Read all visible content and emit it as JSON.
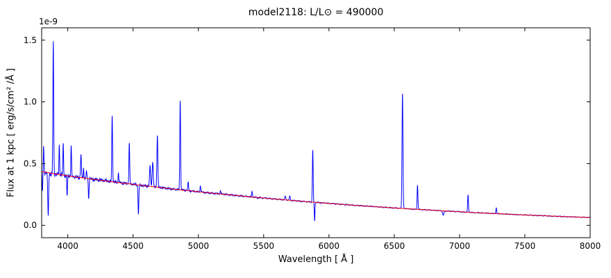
{
  "chart_data": {
    "type": "line",
    "title": "model2118: L/L⊙ = 490000",
    "offset_label": "1e-9",
    "xlabel": "Wavelength [ Å ]",
    "ylabel": "Flux at 1 kpc [ erg/s/cm² /Å ]",
    "xlim": [
      3800,
      8000
    ],
    "ylim": [
      -0.1,
      1.6
    ],
    "xticks": [
      4000,
      4500,
      5000,
      5500,
      6000,
      6500,
      7000,
      7500,
      8000
    ],
    "yticks": [
      0.0,
      0.5,
      1.0,
      1.5
    ],
    "grid": false,
    "legend": null,
    "series": [
      {
        "name": "observed-spectrum",
        "color": "#0000ff"
      },
      {
        "name": "continuum-fit",
        "color": "#ff0000"
      }
    ],
    "continuum_points": [
      [
        3800,
        0.435
      ],
      [
        3900,
        0.417
      ],
      [
        4000,
        0.4
      ],
      [
        4100,
        0.386
      ],
      [
        4200,
        0.372
      ],
      [
        4300,
        0.358
      ],
      [
        4400,
        0.345
      ],
      [
        4500,
        0.332
      ],
      [
        4600,
        0.319
      ],
      [
        4700,
        0.307
      ],
      [
        4800,
        0.295
      ],
      [
        4900,
        0.283
      ],
      [
        5000,
        0.272
      ],
      [
        5100,
        0.261
      ],
      [
        5200,
        0.251
      ],
      [
        5300,
        0.241
      ],
      [
        5400,
        0.231
      ],
      [
        5500,
        0.221
      ],
      [
        5600,
        0.212
      ],
      [
        5700,
        0.203
      ],
      [
        5800,
        0.194
      ],
      [
        5900,
        0.186
      ],
      [
        6000,
        0.178
      ],
      [
        6100,
        0.17
      ],
      [
        6200,
        0.162
      ],
      [
        6300,
        0.155
      ],
      [
        6400,
        0.148
      ],
      [
        6500,
        0.141
      ],
      [
        6600,
        0.134
      ],
      [
        6700,
        0.128
      ],
      [
        6800,
        0.122
      ],
      [
        6900,
        0.116
      ],
      [
        7000,
        0.11
      ],
      [
        7100,
        0.104
      ],
      [
        7200,
        0.099
      ],
      [
        7300,
        0.094
      ],
      [
        7400,
        0.089
      ],
      [
        7500,
        0.084
      ],
      [
        7600,
        0.08
      ],
      [
        7700,
        0.075
      ],
      [
        7800,
        0.071
      ],
      [
        7900,
        0.067
      ],
      [
        8000,
        0.063
      ]
    ],
    "emission_lines": [
      [
        3815,
        0.19,
        2.5
      ],
      [
        3889,
        1.06,
        3.0
      ],
      [
        3935,
        0.25,
        2.5
      ],
      [
        3965,
        0.26,
        2.5
      ],
      [
        4026,
        0.26,
        2.5
      ],
      [
        4101,
        0.19,
        3.0
      ],
      [
        4121,
        0.07,
        2.5
      ],
      [
        4144,
        0.06,
        2.5
      ],
      [
        4340,
        0.54,
        3.0
      ],
      [
        4388,
        0.08,
        2.5
      ],
      [
        4471,
        0.33,
        3.0
      ],
      [
        4630,
        0.16,
        4.0
      ],
      [
        4650,
        0.2,
        4.0
      ],
      [
        4686,
        0.42,
        3.5
      ],
      [
        4861,
        0.72,
        3.0
      ],
      [
        4922,
        0.07,
        3.0
      ],
      [
        5016,
        0.05,
        3.0
      ],
      [
        5169,
        0.025,
        3.0
      ],
      [
        5411,
        0.04,
        3.0
      ],
      [
        5665,
        0.03,
        4.0
      ],
      [
        5700,
        0.03,
        4.0
      ],
      [
        5876,
        0.425,
        3.0
      ],
      [
        6563,
        0.93,
        3.5
      ],
      [
        6678,
        0.2,
        3.0
      ],
      [
        7065,
        0.14,
        3.0
      ],
      [
        7281,
        0.045,
        3.0
      ]
    ],
    "absorption_lines": [
      [
        3806,
        0.16,
        2.5
      ],
      [
        3850,
        0.35,
        3.5
      ],
      [
        3995,
        0.17,
        2.5
      ],
      [
        4160,
        0.15,
        3.0
      ],
      [
        4541,
        0.24,
        3.0
      ],
      [
        5890,
        0.15,
        2.5
      ],
      [
        6875,
        0.035,
        5.0
      ]
    ],
    "noise": {
      "base": 0.004,
      "blue": 0.02,
      "decay": 900
    }
  }
}
